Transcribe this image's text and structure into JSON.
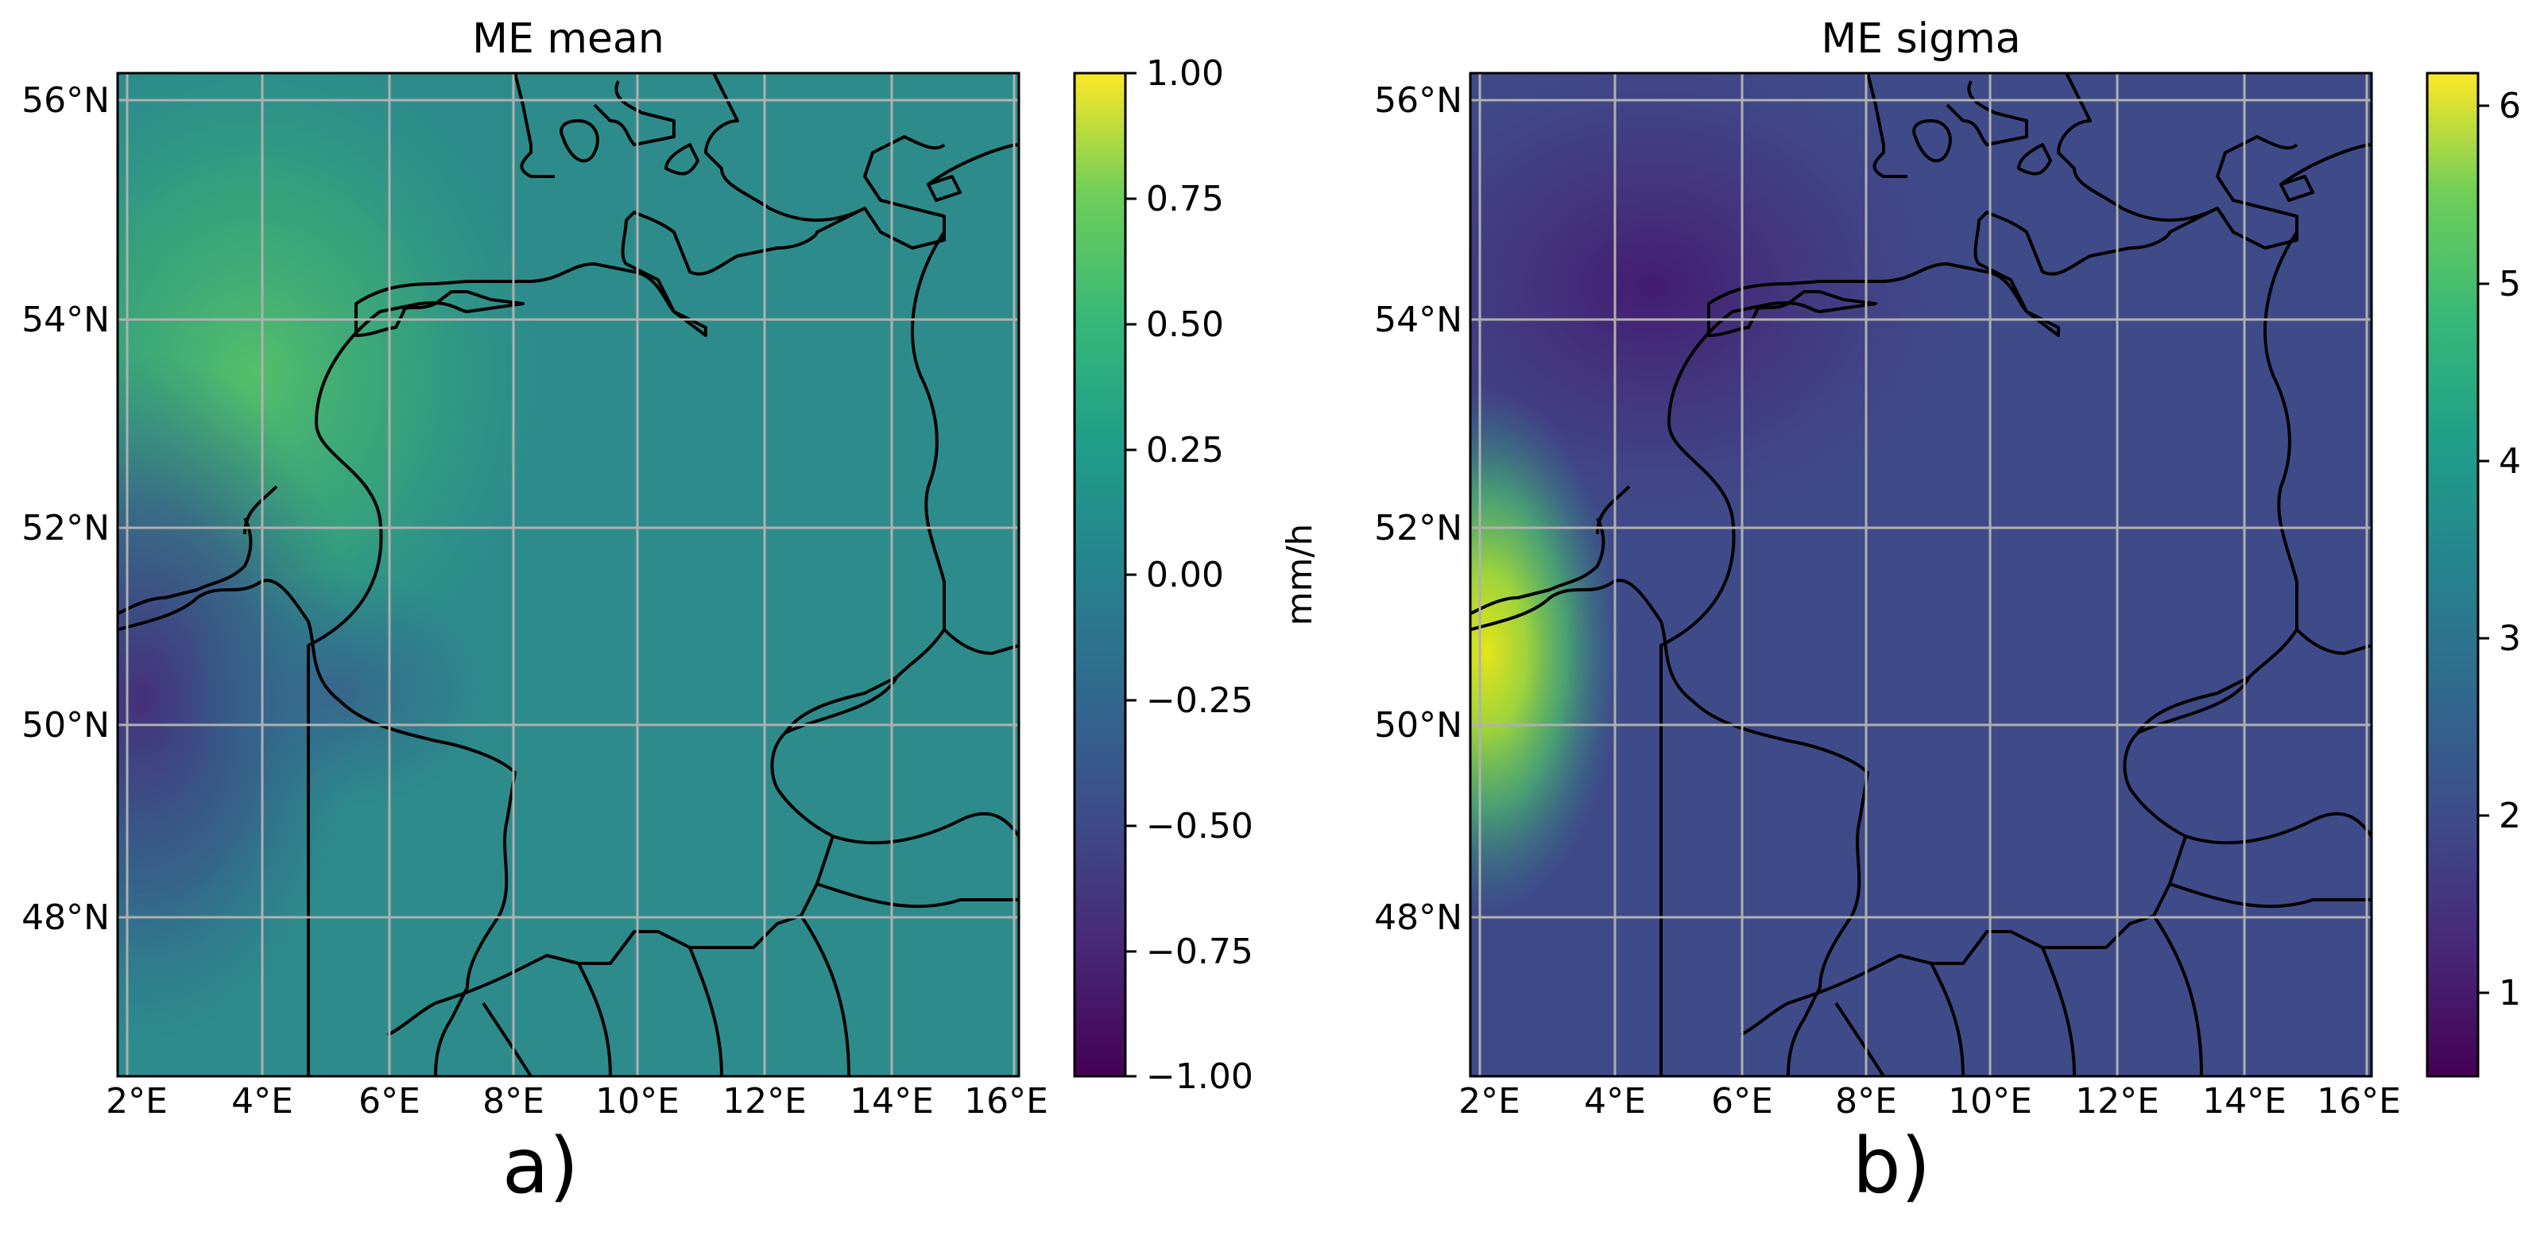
{
  "panels": [
    {
      "id": "a",
      "title": "ME mean",
      "panel_label": "a)",
      "lat_ticks": [
        "56°N",
        "54°N",
        "52°N",
        "50°N",
        "48°N"
      ],
      "lon_ticks": [
        "2°E",
        "4°E",
        "6°E",
        "8°E",
        "10°E",
        "12°E",
        "14°E",
        "16°E"
      ],
      "colorbar": {
        "label": "mm/h",
        "colormap": "viridis",
        "range": [
          -1.0,
          1.0
        ],
        "ticks": [
          "1.00",
          "0.75",
          "0.50",
          "0.25",
          "0.00",
          "−0.25",
          "−0.50",
          "−0.75",
          "−1.00"
        ]
      }
    },
    {
      "id": "b",
      "title": "ME sigma",
      "panel_label": "b)",
      "lat_ticks": [
        "56°N",
        "54°N",
        "52°N",
        "50°N",
        "48°N"
      ],
      "lon_ticks": [
        "2°E",
        "4°E",
        "6°E",
        "8°E",
        "10°E",
        "12°E",
        "14°E",
        "16°E"
      ],
      "colorbar": {
        "label": "",
        "colormap": "viridis",
        "range": [
          0.55,
          6.2
        ],
        "ticks": [
          "6",
          "5",
          "4",
          "3",
          "2",
          "1"
        ]
      }
    }
  ],
  "colors": {
    "gridline": "#b0b0b0",
    "coastline": "#000000",
    "viridis_low": "#440154",
    "viridis_mid": "#21918c",
    "viridis_high": "#fde725"
  }
}
